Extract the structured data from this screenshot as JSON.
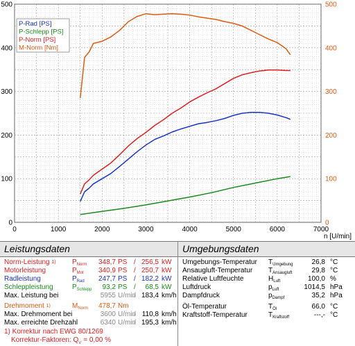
{
  "chart_data": {
    "type": "line",
    "xlabel": "n [U/min]",
    "xlim": [
      0,
      7000
    ],
    "x_ticks": [
      "0",
      "1000",
      "2000",
      "3000",
      "4000",
      "5000",
      "6000",
      "7000"
    ],
    "ylim_left": [
      0,
      500
    ],
    "y_ticks_left": [
      "0",
      "100",
      "200",
      "300",
      "400",
      "500"
    ],
    "ylim_right": [
      0,
      500
    ],
    "y_ticks_right": [
      "0",
      "100",
      "200",
      "300",
      "400",
      "500"
    ],
    "grid": true,
    "legend_position": "top-left",
    "series": [
      {
        "name": "P-Rad [PS]",
        "color": "#1a33c8",
        "x": [
          1500,
          1600,
          1700,
          1800,
          2000,
          2200,
          2400,
          2600,
          2800,
          3000,
          3200,
          3400,
          3600,
          3800,
          4000,
          4200,
          4400,
          4600,
          4800,
          5000,
          5200,
          5400,
          5600,
          5800,
          6000,
          6200,
          6300
        ],
        "y": [
          48,
          70,
          78,
          88,
          100,
          112,
          128,
          145,
          162,
          177,
          190,
          198,
          207,
          214,
          220,
          226,
          229,
          233,
          238,
          245,
          250,
          252,
          252,
          250,
          246,
          240,
          236
        ]
      },
      {
        "name": "P-Schlepp [PS]",
        "color": "#1a8a1a",
        "x": [
          1500,
          2000,
          2500,
          3000,
          3500,
          4000,
          4500,
          5000,
          5500,
          6000,
          6300
        ],
        "y": [
          18,
          25,
          32,
          40,
          49,
          58,
          68,
          80,
          90,
          100,
          105
        ]
      },
      {
        "name": "P-Norm [PS]",
        "color": "#e02020",
        "x": [
          1500,
          1600,
          1700,
          1800,
          2000,
          2200,
          2400,
          2600,
          2800,
          3000,
          3200,
          3400,
          3600,
          3800,
          4000,
          4200,
          4400,
          4600,
          4800,
          5000,
          5200,
          5400,
          5600,
          5800,
          6000,
          6200,
          6300
        ],
        "y": [
          65,
          88,
          97,
          108,
          122,
          136,
          155,
          175,
          192,
          206,
          222,
          235,
          250,
          262,
          276,
          287,
          297,
          306,
          318,
          330,
          338,
          343,
          347,
          349,
          349,
          348,
          348
        ]
      },
      {
        "name": "M-Norm [Nm]",
        "color": "#e05a10",
        "x": [
          1500,
          1600,
          1700,
          1800,
          2000,
          2200,
          2400,
          2600,
          2800,
          3000,
          3200,
          3400,
          3600,
          3800,
          4000,
          4200,
          4400,
          4600,
          4800,
          5000,
          5200,
          5400,
          5600,
          5800,
          6000,
          6200,
          6300
        ],
        "y": [
          285,
          378,
          390,
          410,
          415,
          425,
          440,
          460,
          472,
          478,
          476,
          477,
          478,
          477,
          475,
          471,
          468,
          465,
          460,
          456,
          450,
          440,
          430,
          420,
          412,
          398,
          384
        ]
      }
    ]
  },
  "tables": {
    "left_title": "Leistungsdaten",
    "right_title": "Umgebungsdaten",
    "left_rows": [
      {
        "label": "Norm-Leistung",
        "note": "1)",
        "sym": "P",
        "sub": "Norm",
        "v1": "348,7",
        "u1": "PS",
        "sep": "/",
        "v2": "256,5",
        "u2": "kW",
        "color": "red"
      },
      {
        "label": "Motorleistung",
        "sym": "P",
        "sub": "Mot",
        "v1": "340,9",
        "u1": "PS",
        "sep": "/",
        "v2": "250,7",
        "u2": "kW",
        "color": "red"
      },
      {
        "label": "Radleistung",
        "sym": "P",
        "sub": "Rad",
        "v1": "247,7",
        "u1": "PS",
        "sep": "/",
        "v2": "182,2",
        "u2": "kW",
        "color": "blue"
      },
      {
        "label": "Schleppleistung",
        "sym": "P",
        "sub": "Schlepp",
        "v1": "93,2",
        "u1": "PS",
        "sep": "/",
        "v2": "68,5",
        "u2": "kW",
        "color": "green"
      },
      {
        "label": "Max. Leistung bei",
        "v1": "5955",
        "u1": "U/min",
        "sep": "/",
        "v2": "183,4",
        "u2": "km/h",
        "color": "black"
      },
      {
        "label": "Drehmoment",
        "note": "1)",
        "sym": "M",
        "sub": "Norm",
        "v1": "478,7",
        "u1": "Nm",
        "color": "orange"
      },
      {
        "label": "Max. Drehmoment bei",
        "v1": "3600",
        "u1": "U/min",
        "sep": "/",
        "v2": "110,8",
        "u2": "km/h",
        "color": "black"
      },
      {
        "label": "Max. erreichte Drehzahl",
        "v1": "6340",
        "u1": "U/min",
        "sep": "/",
        "v2": "195,3",
        "u2": "km/h",
        "color": "black"
      }
    ],
    "footnote1": "1) Korrektur nach EWG 80/1269",
    "footnote2": "Korrektur-Faktoren: Q",
    "footnote2_sub": "V",
    "footnote2_val": "=  0,00 %",
    "right_rows": [
      {
        "label": "Umgebungs-Temperatur",
        "sym": "T",
        "sub": "Umgebung",
        "val": "26,8",
        "unit": "°C"
      },
      {
        "label": "Ansaugluft-Temperatur",
        "sym": "T",
        "sub": "Ansaugluft",
        "val": "29,8",
        "unit": "°C"
      },
      {
        "label": "Relative Luftfeuchte",
        "sym": "H",
        "sub": "Luft",
        "val": "100,0",
        "unit": "%"
      },
      {
        "label": "Luftdruck",
        "sym": "p",
        "sub": "Luft",
        "val": "1014,5",
        "unit": "hPa"
      },
      {
        "label": "Dampfdruck",
        "sym": "p",
        "sub": "Dampf",
        "val": "35,2",
        "unit": "hPa"
      },
      {
        "label": "Öl-Temperatur",
        "sym": "T",
        "sub": "Öl",
        "val": "66,0",
        "unit": "°C"
      },
      {
        "label": "Kraftstoff-Temperatur",
        "sym": "T",
        "sub": "Kraftstoff",
        "val": "---,-",
        "unit": "°C"
      }
    ]
  }
}
